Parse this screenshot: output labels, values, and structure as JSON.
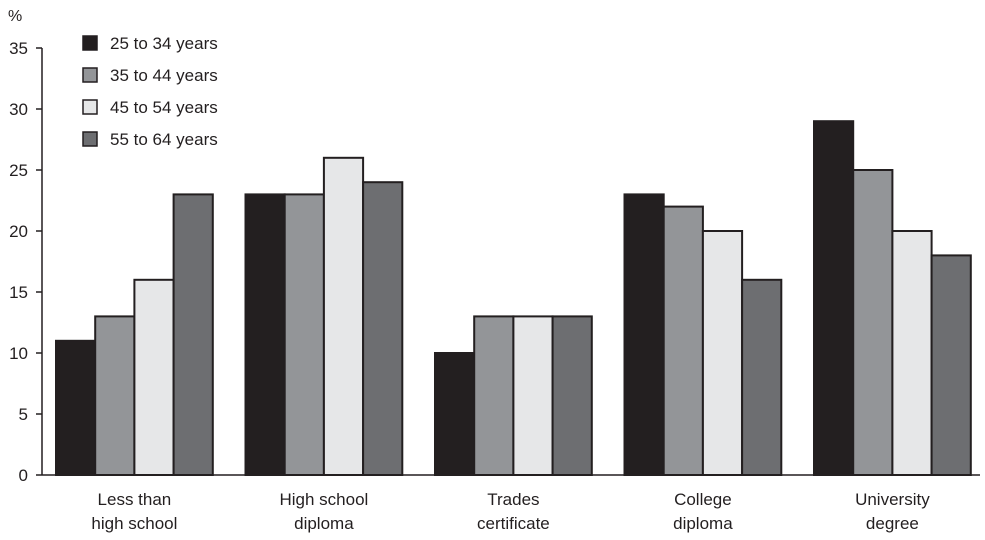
{
  "chart_data": {
    "type": "bar",
    "title": "",
    "xlabel": "",
    "ylabel": "%",
    "ylim": [
      0,
      35
    ],
    "yticks": [
      0,
      5,
      10,
      15,
      20,
      25,
      30,
      35
    ],
    "grid": false,
    "legend_position": "top-left",
    "categories": [
      [
        "Less than",
        "high school"
      ],
      [
        "High school",
        "diploma"
      ],
      [
        "Trades",
        "certificate"
      ],
      [
        "College",
        "diploma"
      ],
      [
        "University",
        "degree"
      ]
    ],
    "series": [
      {
        "name": "25 to 34 years",
        "color": "#231f20",
        "values": [
          11,
          23,
          10,
          23,
          29
        ]
      },
      {
        "name": "35 to 44 years",
        "color": "#939598",
        "values": [
          13,
          23,
          13,
          22,
          25
        ]
      },
      {
        "name": "45 to 54 years",
        "color": "#e6e7e8",
        "values": [
          16,
          26,
          13,
          20,
          20
        ]
      },
      {
        "name": "55 to 64 years",
        "color": "#6d6e71",
        "values": [
          23,
          24,
          13,
          16,
          18
        ]
      }
    ]
  }
}
